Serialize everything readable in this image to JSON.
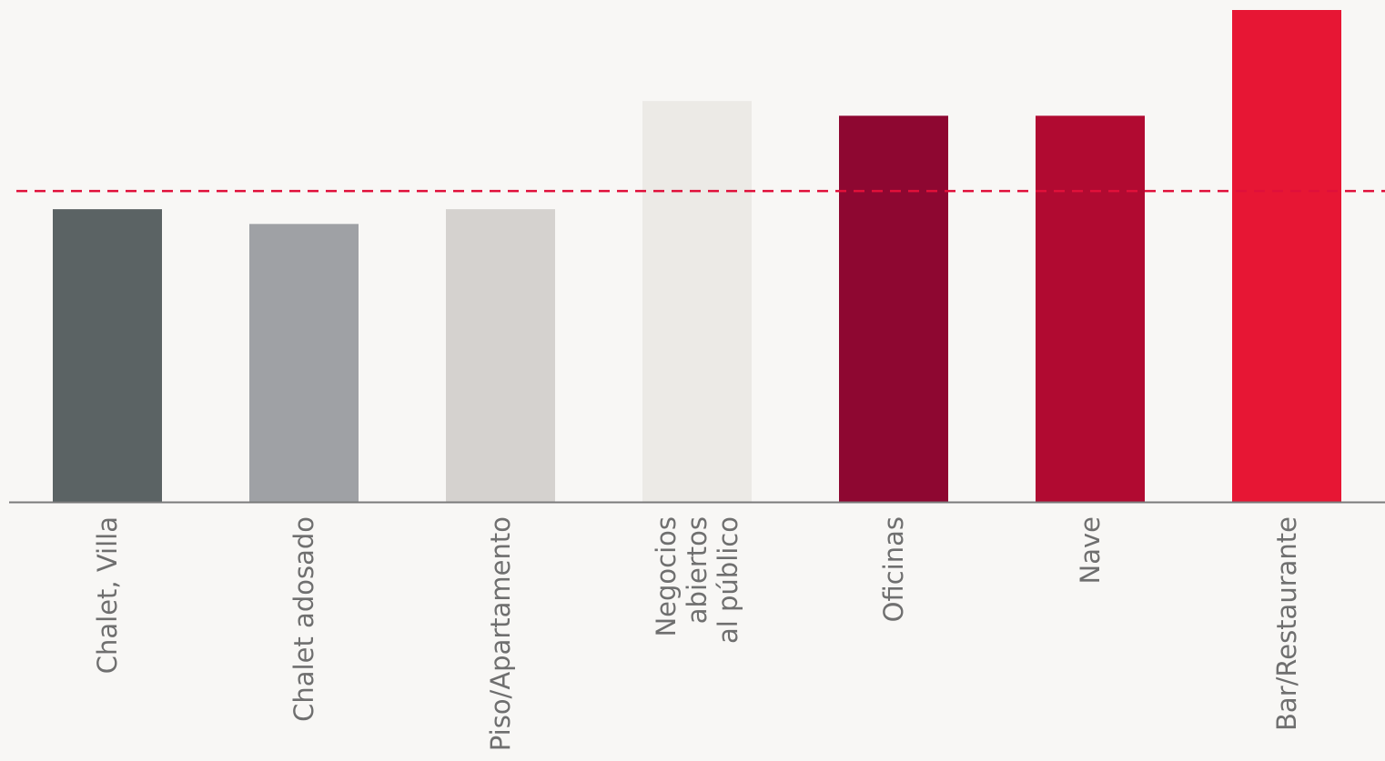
{
  "chart_data": {
    "type": "bar",
    "categories": [
      [
        "Chalet, Villa"
      ],
      [
        "Chalet adosado"
      ],
      [
        "Piso/Apartamento"
      ],
      [
        "Negocios",
        "abiertos",
        "al público"
      ],
      [
        "Oficinas"
      ],
      [
        "Nave"
      ],
      [
        "Bar/Restaurante"
      ]
    ],
    "values": [
      59.5,
      56.5,
      59.5,
      81.5,
      78.5,
      78.5,
      100
    ],
    "colors": [
      "#5b6364",
      "#9fa1a5",
      "#d5d2cf",
      "#eceae6",
      "#8e0731",
      "#b10a31",
      "#e71634"
    ],
    "reference_line": {
      "value": 63.2,
      "color": "#e0103a",
      "style": "dashed"
    },
    "ylim": [
      0,
      100
    ],
    "title": "",
    "xlabel": "",
    "ylabel": "",
    "grid": false,
    "legend": "none",
    "axis_color": "#7a7a7a"
  }
}
